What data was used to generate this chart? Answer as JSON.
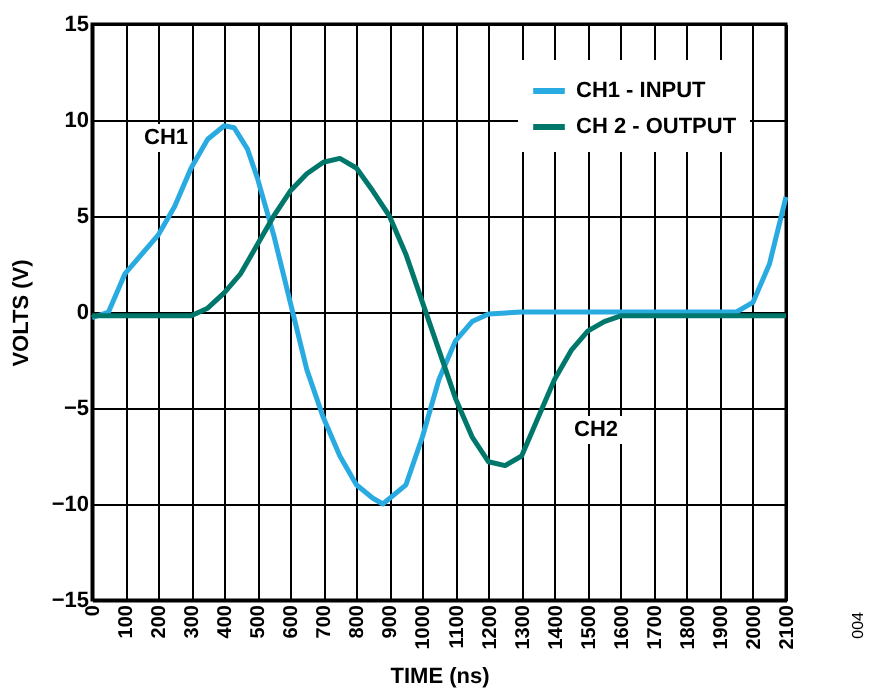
{
  "chart_data": {
    "type": "line",
    "xlabel": "TIME (ns)",
    "ylabel": "VOLTS (V)",
    "xlim": [
      0,
      2100
    ],
    "xticks": [
      0,
      100,
      200,
      300,
      400,
      500,
      600,
      700,
      800,
      900,
      1000,
      1100,
      1200,
      1300,
      1400,
      1500,
      1600,
      1700,
      1800,
      1900,
      2000,
      2100
    ],
    "ylim": [
      -15,
      15
    ],
    "yticks": [
      -15,
      -10,
      -5,
      0,
      5,
      10,
      15
    ],
    "grid": true,
    "legend": "top right",
    "line_style": "solid",
    "marker": "none",
    "series": [
      {
        "name": "CH1 - INPUT",
        "color": "#29abe2",
        "x": [
          0,
          50,
          100,
          150,
          200,
          250,
          300,
          350,
          400,
          430,
          470,
          500,
          550,
          600,
          650,
          700,
          750,
          800,
          850,
          880,
          950,
          1000,
          1050,
          1100,
          1150,
          1200,
          1300,
          1400,
          1500,
          1600,
          1700,
          1800,
          1900,
          1950,
          2000,
          2050,
          2100
        ],
        "values": [
          -0.3,
          0,
          2,
          3,
          4,
          5.5,
          7.5,
          9,
          9.7,
          9.6,
          8.5,
          7,
          4,
          0.5,
          -3,
          -5.5,
          -7.5,
          -9,
          -9.7,
          -10,
          -9,
          -6.5,
          -3.5,
          -1.5,
          -0.5,
          -0.1,
          0,
          0,
          0,
          0,
          0,
          0,
          0,
          0,
          0.5,
          2.5,
          6
        ]
      },
      {
        "name": "CH 2 - OUTPUT",
        "color": "#00776b",
        "x": [
          0,
          100,
          200,
          300,
          350,
          400,
          450,
          500,
          550,
          600,
          650,
          700,
          750,
          800,
          850,
          900,
          950,
          1000,
          1050,
          1100,
          1150,
          1200,
          1250,
          1300,
          1350,
          1400,
          1450,
          1500,
          1550,
          1600,
          1700,
          1800,
          1900,
          2000,
          2100
        ],
        "values": [
          -0.2,
          -0.2,
          -0.2,
          -0.2,
          0.2,
          1,
          2,
          3.5,
          5,
          6.3,
          7.2,
          7.8,
          8,
          7.5,
          6.3,
          5,
          3,
          0.5,
          -2,
          -4.5,
          -6.5,
          -7.8,
          -8,
          -7.5,
          -5.5,
          -3.5,
          -2,
          -1,
          -0.5,
          -0.2,
          -0.2,
          -0.2,
          -0.2,
          -0.2,
          -0.2
        ]
      }
    ],
    "annotations": [
      "CH1",
      "CH2",
      "004"
    ]
  }
}
